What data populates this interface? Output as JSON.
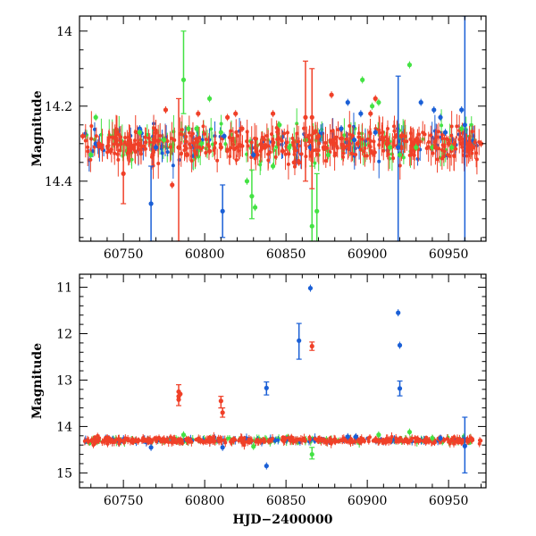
{
  "chart_data": [
    {
      "type": "scatter",
      "panel": "top",
      "xlabel": "",
      "ylabel": "Magnitude",
      "xlim": [
        60723,
        60973
      ],
      "ylim": [
        14.56,
        13.96
      ],
      "y_inverted": true,
      "xticks": [
        60750,
        60800,
        60850,
        60900,
        60950
      ],
      "yticks": [
        14,
        14.2,
        14.4
      ],
      "baseline": 14.3,
      "series": [
        {
          "name": "blue",
          "color": "#1a5fd6",
          "points": [
            [
              60733,
              14.3
            ],
            [
              60760,
              14.26
            ],
            [
              60767,
              14.46
            ],
            [
              60770,
              14.31
            ],
            [
              60811,
              14.48
            ],
            [
              60812,
              14.28
            ],
            [
              60830,
              14.33
            ],
            [
              60865,
              14.31
            ],
            [
              60884,
              14.26
            ],
            [
              60888,
              14.19
            ],
            [
              60892,
              14.29
            ],
            [
              60896,
              14.22
            ],
            [
              60905,
              14.27
            ],
            [
              60919,
              14.31
            ],
            [
              60933,
              14.19
            ],
            [
              60941,
              14.21
            ],
            [
              60945,
              14.23
            ],
            [
              60948,
              14.27
            ],
            [
              60958,
              14.21
            ],
            [
              60960,
              14.25
            ]
          ],
          "errorbars": [
            [
              60767,
              14.36,
              14.56
            ],
            [
              60811,
              14.41,
              14.55
            ],
            [
              60919,
              14.12,
              14.56
            ],
            [
              60960,
              13.96,
              14.56
            ]
          ]
        },
        {
          "name": "green",
          "color": "#44e244",
          "points": [
            [
              60730,
              14.33
            ],
            [
              60733,
              14.23
            ],
            [
              60760,
              14.27
            ],
            [
              60775,
              14.29
            ],
            [
              60787,
              14.13
            ],
            [
              60790,
              14.26
            ],
            [
              60795,
              14.26
            ],
            [
              60798,
              14.3
            ],
            [
              60803,
              14.18
            ],
            [
              60810,
              14.27
            ],
            [
              60826,
              14.4
            ],
            [
              60829,
              14.44
            ],
            [
              60831,
              14.47
            ],
            [
              60842,
              14.36
            ],
            [
              60846,
              14.25
            ],
            [
              60852,
              14.31
            ],
            [
              60862,
              14.29
            ],
            [
              60866,
              14.52
            ],
            [
              60869,
              14.48
            ],
            [
              60876,
              14.33
            ],
            [
              60897,
              14.13
            ],
            [
              60903,
              14.2
            ],
            [
              60907,
              14.19
            ],
            [
              60914,
              14.31
            ],
            [
              60920,
              14.33
            ],
            [
              60926,
              14.09
            ],
            [
              60930,
              14.31
            ],
            [
              60940,
              14.31
            ],
            [
              60952,
              14.31
            ],
            [
              60958,
              14.26
            ]
          ],
          "errorbars": [
            [
              60787,
              14.0,
              14.22
            ],
            [
              60866,
              14.36,
              14.56
            ],
            [
              60869,
              14.38,
              14.56
            ],
            [
              60829,
              14.37,
              14.5
            ]
          ]
        },
        {
          "name": "red",
          "color": "#f04028",
          "points": [
            [
              60725,
              14.28
            ],
            [
              60735,
              14.3
            ],
            [
              60742,
              14.32
            ],
            [
              60750,
              14.38
            ],
            [
              60756,
              14.31
            ],
            [
              60768,
              14.33
            ],
            [
              60776,
              14.21
            ],
            [
              60780,
              14.41
            ],
            [
              60784,
              14.31
            ],
            [
              60789,
              14.33
            ],
            [
              60796,
              14.22
            ],
            [
              60803,
              14.32
            ],
            [
              60810,
              14.31
            ],
            [
              60814,
              14.23
            ],
            [
              60819,
              14.22
            ],
            [
              60823,
              14.26
            ],
            [
              60837,
              14.31
            ],
            [
              60842,
              14.22
            ],
            [
              60848,
              14.32
            ],
            [
              60855,
              14.35
            ],
            [
              60858,
              14.35
            ],
            [
              60862,
              14.23
            ],
            [
              60866,
              14.23
            ],
            [
              60870,
              14.28
            ],
            [
              60874,
              14.31
            ],
            [
              60878,
              14.17
            ],
            [
              60886,
              14.31
            ],
            [
              60894,
              14.3
            ],
            [
              60902,
              14.22
            ],
            [
              60905,
              14.18
            ],
            [
              60912,
              14.3
            ],
            [
              60921,
              14.28
            ],
            [
              60930,
              14.29
            ],
            [
              60942,
              14.31
            ],
            [
              60950,
              14.3
            ],
            [
              60958,
              14.3
            ],
            [
              60965,
              14.31
            ],
            [
              60970,
              14.3
            ]
          ],
          "errorbars": [
            [
              60784,
              14.18,
              14.56
            ],
            [
              60862,
              14.08,
              14.4
            ],
            [
              60866,
              14.1,
              14.42
            ],
            [
              60750,
              14.3,
              14.46
            ]
          ]
        }
      ]
    },
    {
      "type": "scatter",
      "panel": "bottom",
      "xlabel": "HJD−2400000",
      "ylabel": "Magnitude",
      "xlim": [
        60723,
        60973
      ],
      "ylim": [
        15.32,
        10.72
      ],
      "y_inverted": true,
      "xticks": [
        60750,
        60800,
        60850,
        60900,
        60950
      ],
      "yticks": [
        11,
        12,
        13,
        14,
        15
      ],
      "baseline": 14.3,
      "series": [
        {
          "name": "blue",
          "color": "#1a5fd6",
          "points": [
            [
              60767,
              14.45
            ],
            [
              60811,
              14.45
            ],
            [
              60838,
              13.17
            ],
            [
              60838,
              14.85
            ],
            [
              60858,
              12.15
            ],
            [
              60865,
              11.02
            ],
            [
              60888,
              14.22
            ],
            [
              60893,
              14.22
            ],
            [
              60919,
              11.55
            ],
            [
              60920,
              12.25
            ],
            [
              60920,
              13.18
            ],
            [
              60945,
              14.25
            ],
            [
              60960,
              14.42
            ]
          ],
          "errorbars": [
            [
              60838,
              13.04,
              13.32
            ],
            [
              60858,
              11.78,
              12.55
            ],
            [
              60920,
              13.02,
              13.34
            ],
            [
              60960,
              13.8,
              15.0
            ]
          ]
        },
        {
          "name": "green",
          "color": "#44e244",
          "points": [
            [
              60787,
              14.18
            ],
            [
              60830,
              14.43
            ],
            [
              60866,
              14.6
            ],
            [
              60907,
              14.18
            ],
            [
              60926,
              14.12
            ],
            [
              60940,
              14.25
            ]
          ],
          "errorbars": [
            [
              60866,
              14.45,
              14.7
            ]
          ]
        },
        {
          "name": "red",
          "color": "#f04028",
          "points": [
            [
              60784,
              13.25
            ],
            [
              60784,
              13.35
            ],
            [
              60784,
              13.42
            ],
            [
              60785,
              13.3
            ],
            [
              60810,
              13.45
            ],
            [
              60811,
              13.7
            ],
            [
              60866,
              12.27
            ],
            [
              60870,
              14.28
            ],
            [
              60890,
              14.3
            ]
          ],
          "errorbars": [
            [
              60784,
              13.1,
              13.55
            ],
            [
              60810,
              13.35,
              13.6
            ],
            [
              60811,
              13.6,
              13.8
            ],
            [
              60866,
              12.18,
              12.36
            ]
          ]
        }
      ]
    }
  ]
}
